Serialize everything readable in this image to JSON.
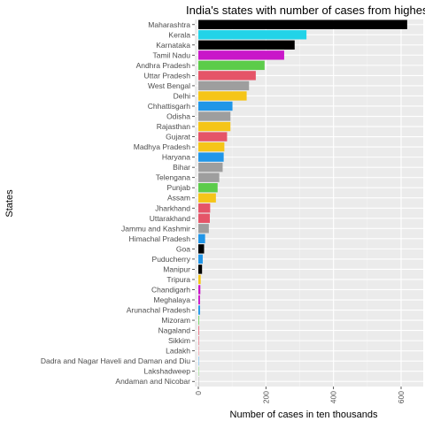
{
  "chart_data": {
    "type": "bar",
    "orientation": "horizontal",
    "title": "India's states with number of cases from highest to lowest",
    "xlabel": "Number of cases in ten thousands",
    "ylabel": "States",
    "xlim": [
      0,
      635
    ],
    "xticks": [
      0,
      200,
      400,
      600
    ],
    "xtick_labels": [
      "0",
      "200",
      "400",
      "600"
    ],
    "grid": true,
    "legend": "none",
    "categories": [
      "Maharashtra",
      "Kerala",
      "Karnataka",
      "Tamil Nadu",
      "Andhra Pradesh",
      "Uttar Pradesh",
      "West Bengal",
      "Delhi",
      "Chhattisgarh",
      "Odisha",
      "Rajasthan",
      "Gujarat",
      "Madhya Pradesh",
      "Haryana",
      "Bihar",
      "Telengana",
      "Punjab",
      "Assam",
      "Jharkhand",
      "Uttarakhand",
      "Jammu and Kashmir",
      "Himachal Pradesh",
      "Goa",
      "Puducherry",
      "Manipur",
      "Tripura",
      "Chandigarh",
      "Meghalaya",
      "Arunachal Pradesh",
      "Mizoram",
      "Nagaland",
      "Sikkim",
      "Ladakh",
      "Dadra and Nagar Haveli and Daman and Diu",
      "Lakshadweep",
      "Andaman and Nicobar"
    ],
    "values": [
      618,
      320,
      285,
      254,
      196,
      170,
      150,
      143,
      101,
      95,
      95,
      85,
      77,
      75,
      72,
      62,
      57,
      52,
      35,
      34,
      31,
      20,
      17,
      13,
      11,
      7,
      6,
      5,
      5,
      2,
      2,
      1.5,
      1,
      0.5,
      0.3,
      0.2
    ],
    "colors": [
      "#000000",
      "#22d3e8",
      "#000000",
      "#c916c9",
      "#5ccc4a",
      "#e55468",
      "#9e9e9e",
      "#f5c518",
      "#2196e8",
      "#9e9e9e",
      "#f5c518",
      "#e55468",
      "#f5c518",
      "#2196e8",
      "#9e9e9e",
      "#9e9e9e",
      "#5ccc4a",
      "#f5c518",
      "#e55468",
      "#e55468",
      "#9e9e9e",
      "#2196e8",
      "#000000",
      "#2196e8",
      "#000000",
      "#f5c518",
      "#c916c9",
      "#c916c9",
      "#2196e8",
      "#5ccc4a",
      "#e55468",
      "#e55468",
      "#e55468",
      "#2196e8",
      "#5ccc4a",
      "#9e9e9e"
    ]
  }
}
